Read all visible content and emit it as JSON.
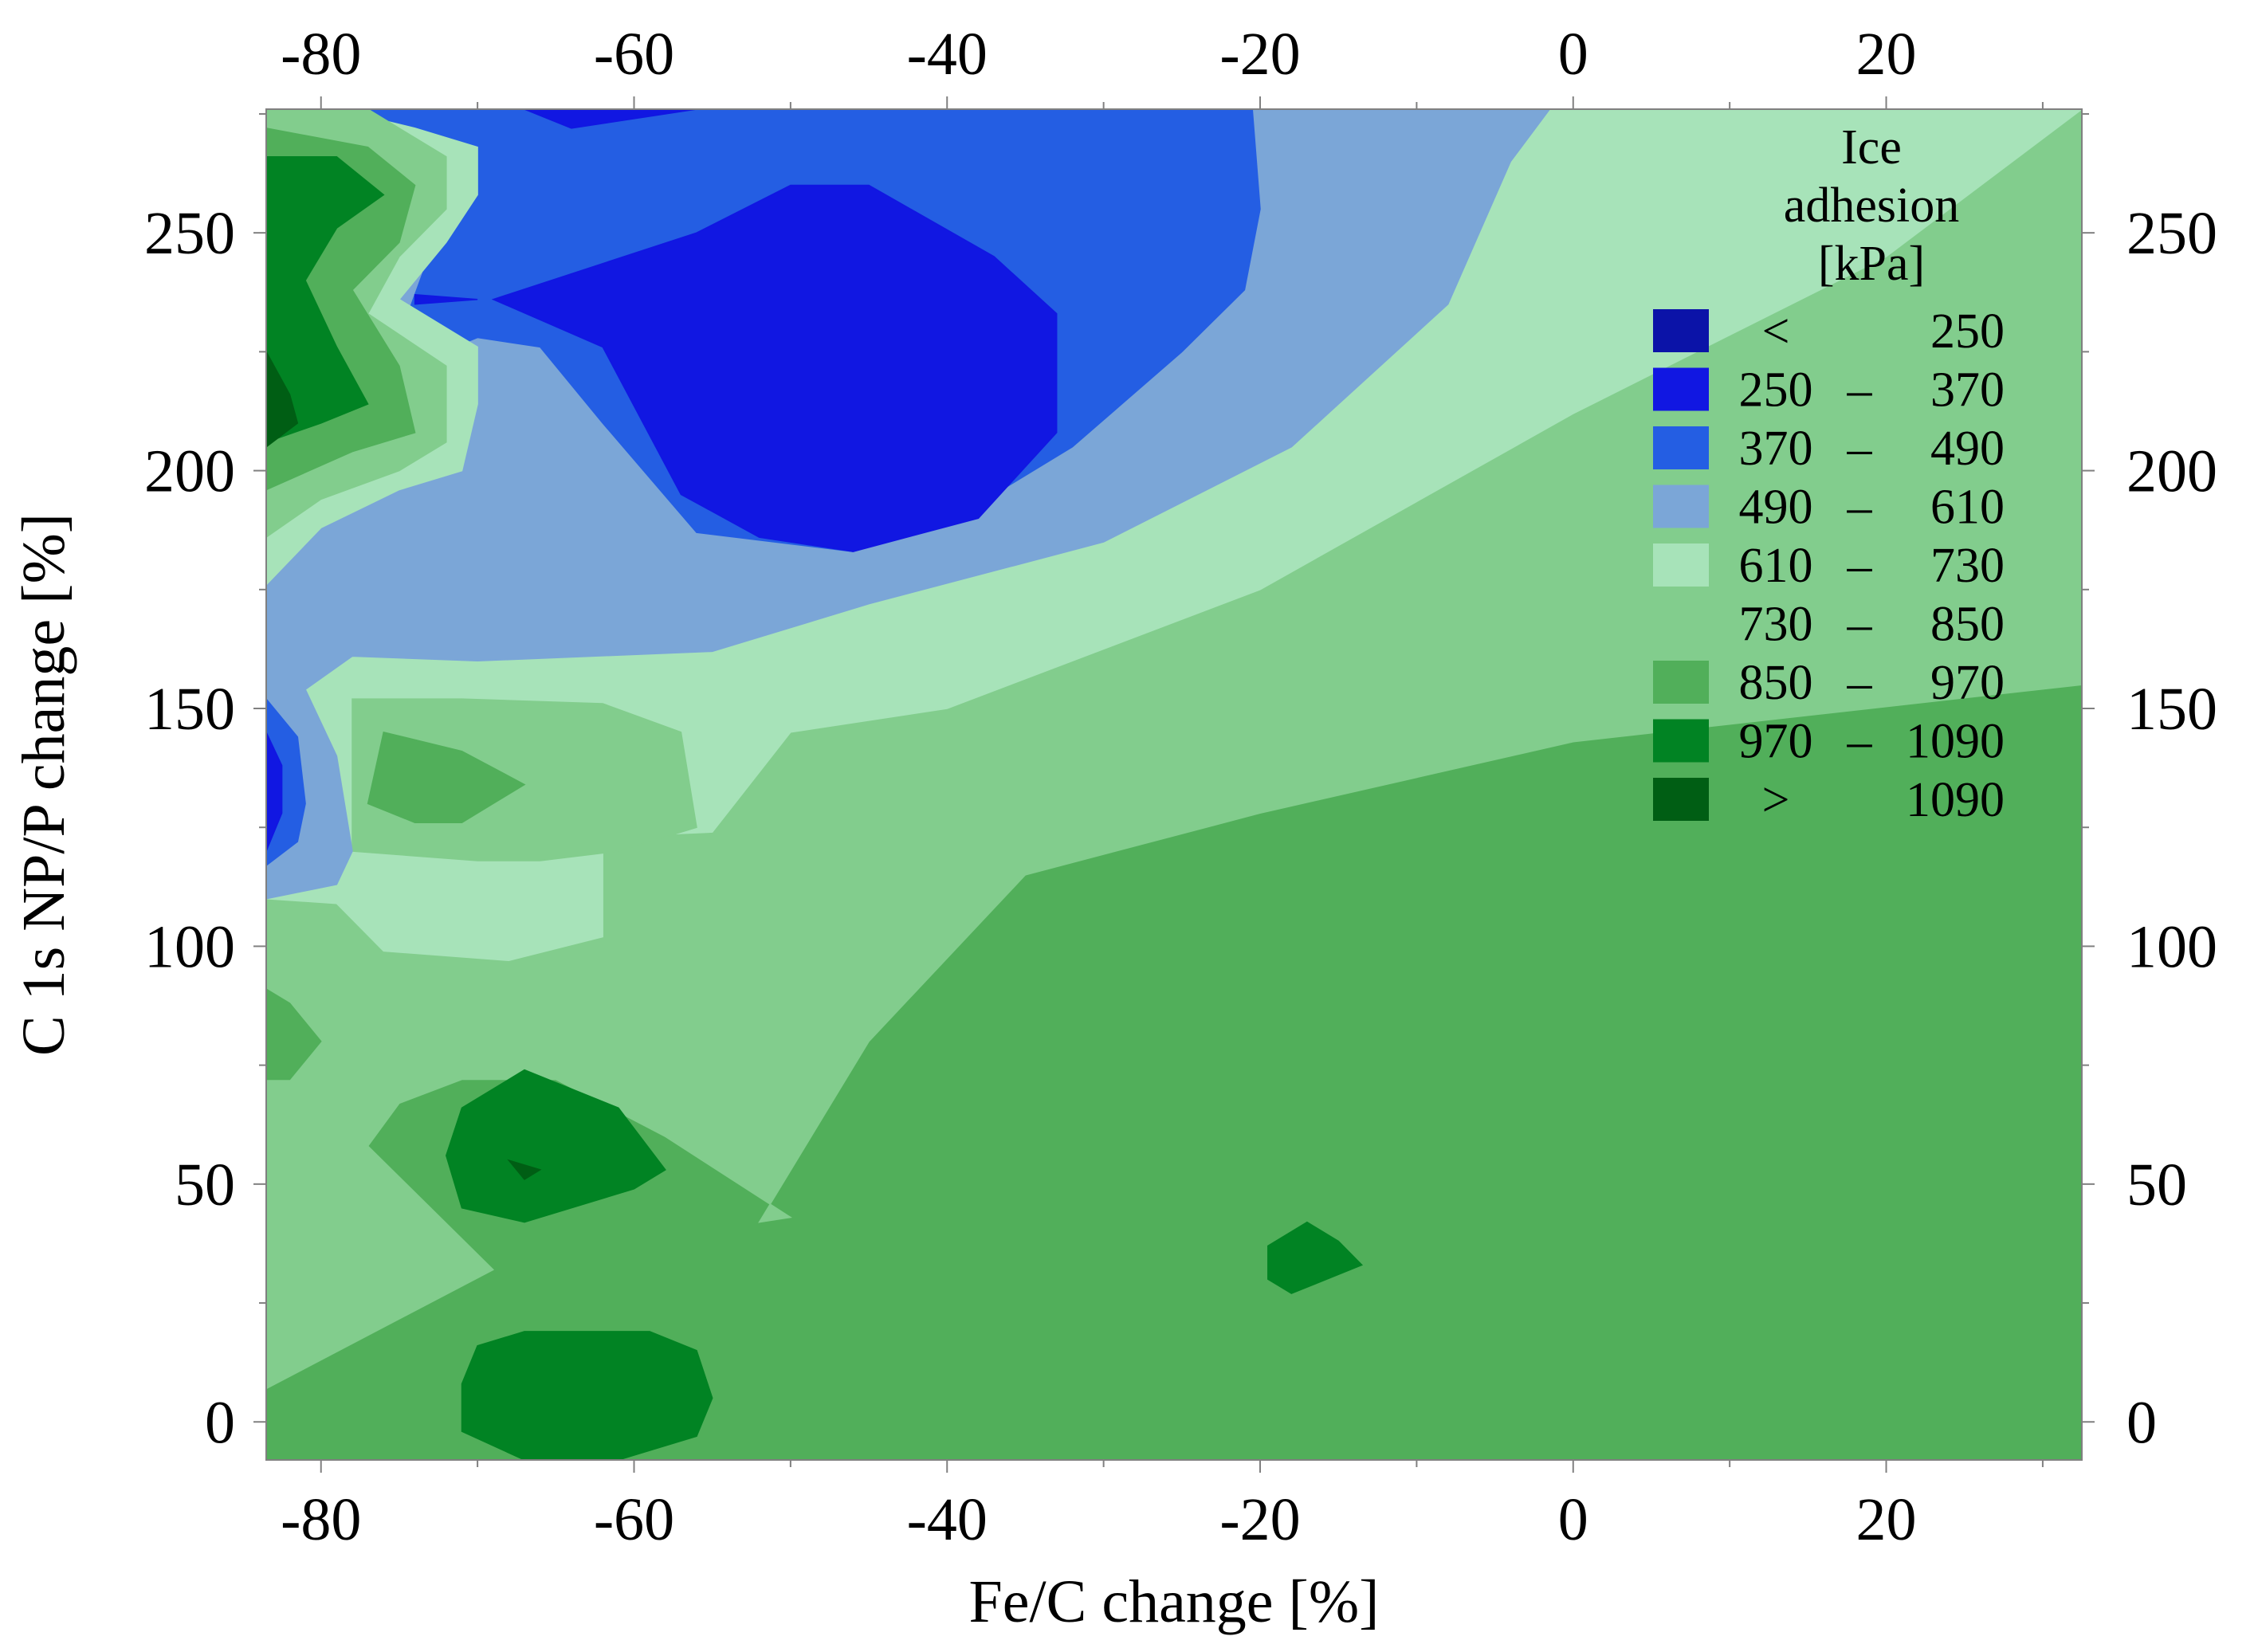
{
  "chart_data": {
    "type": "contour",
    "xlabel": "Fe/C change [%]",
    "ylabel": "C 1s NP/P change [%]",
    "xlim": [
      -83.5,
      32.5
    ],
    "ylim": [
      -8,
      276
    ],
    "x_ticks": [
      -80,
      -60,
      -40,
      -20,
      0,
      20
    ],
    "y_ticks": [
      0,
      50,
      100,
      150,
      200,
      250
    ],
    "x_tick_labels": [
      "-80",
      "-60",
      "-40",
      "-20",
      "0",
      "20"
    ],
    "y_tick_labels": [
      "0",
      "50",
      "100",
      "150",
      "200",
      "250"
    ],
    "x_minor_step": 10,
    "y_minor_step": 25,
    "ticks_on_all_sides": true,
    "grid": false,
    "legend": {
      "title_lines": [
        "Ice",
        "adhesion",
        "[kPa]"
      ],
      "placement": "top-right",
      "items": [
        {
          "low": "<",
          "dash": "",
          "high": "250",
          "color": "#0b13a8"
        },
        {
          "low": "250",
          "dash": "–",
          "high": "370",
          "color": "#1117e2"
        },
        {
          "low": "370",
          "dash": "–",
          "high": "490",
          "color": "#245ee3"
        },
        {
          "low": "490",
          "dash": "–",
          "high": "610",
          "color": "#7ba6d7"
        },
        {
          "low": "610",
          "dash": "–",
          "high": "730",
          "color": "#a7e3b9"
        },
        {
          "low": "730",
          "dash": "–",
          "high": "850",
          "color": "#82cd8d"
        },
        {
          "low": "850",
          "dash": "–",
          "high": "970",
          "color": "#51af5a"
        },
        {
          "low": "970",
          "dash": "–",
          "high": "1090",
          "color": "#018323"
        },
        {
          "low": ">",
          "dash": "",
          "high": "1090",
          "color": "#005e14"
        }
      ]
    },
    "regions": [
      {
        "level": "850-970",
        "color": "#51af5a",
        "points": [
          [
            -83.5,
            -8
          ],
          [
            32.5,
            -8
          ],
          [
            32.5,
            276
          ],
          [
            -83.5,
            276
          ]
        ]
      },
      {
        "level": "730-850",
        "color": "#82cd8d",
        "points": [
          [
            -83.5,
            276
          ],
          [
            32.5,
            276
          ],
          [
            32.5,
            155
          ],
          [
            0,
            143
          ],
          [
            -20,
            128
          ],
          [
            -35,
            115
          ],
          [
            -45,
            80
          ],
          [
            -52,
            42
          ],
          [
            -50,
            43
          ],
          [
            -58,
            60
          ],
          [
            -65,
            72
          ],
          [
            -71,
            72
          ],
          [
            -75,
            67
          ],
          [
            -77,
            58
          ],
          [
            -69,
            32
          ],
          [
            -83.5,
            7
          ]
        ]
      },
      {
        "level": "610-730",
        "color": "#a7e3b9",
        "points": [
          [
            -83.5,
            276
          ],
          [
            32.5,
            276
          ],
          [
            32.5,
            276
          ],
          [
            20,
            245
          ],
          [
            0,
            212
          ],
          [
            -20,
            175
          ],
          [
            -40,
            150
          ],
          [
            -50,
            145
          ],
          [
            -55,
            124
          ],
          [
            -62,
            123
          ],
          [
            -62,
            102
          ],
          [
            -68,
            97
          ],
          [
            -76,
            99
          ],
          [
            -79,
            109
          ],
          [
            -83.5,
            110
          ]
        ]
      },
      {
        "level": "730-850",
        "color": "#82cd8d",
        "points": [
          [
            -78,
            152
          ],
          [
            -71,
            152
          ],
          [
            -62,
            151
          ],
          [
            -57,
            145
          ],
          [
            -56,
            125
          ],
          [
            -61,
            120
          ],
          [
            -66,
            118
          ],
          [
            -70,
            118
          ],
          [
            -78,
            120
          ]
        ]
      },
      {
        "level": "850-970",
        "color": "#51af5a",
        "points": [
          [
            -76,
            145
          ],
          [
            -71,
            141
          ],
          [
            -67,
            134
          ],
          [
            -71,
            126
          ],
          [
            -74,
            126
          ],
          [
            -77,
            130
          ]
        ]
      },
      {
        "level": "850-970",
        "color": "#51af5a",
        "points": [
          [
            -83.5,
            91
          ],
          [
            -82,
            88
          ],
          [
            -80,
            80
          ],
          [
            -82,
            72
          ],
          [
            -83.5,
            72
          ]
        ]
      },
      {
        "level": "970-1090",
        "color": "#018323",
        "points": [
          [
            -67,
            74
          ],
          [
            -61,
            66
          ],
          [
            -58,
            53
          ],
          [
            -60,
            49
          ],
          [
            -67,
            42
          ],
          [
            -71,
            45
          ],
          [
            -72,
            56
          ],
          [
            -71,
            66
          ]
        ]
      },
      {
        "level": ">1090",
        "color": "#005e14",
        "points": [
          [
            -68,
            55
          ],
          [
            -67,
            51
          ],
          [
            -66,
            53
          ]
        ]
      },
      {
        "level": "970-1090",
        "color": "#018323",
        "points": [
          [
            -71,
            8
          ],
          [
            -70,
            16
          ],
          [
            -67,
            19
          ],
          [
            -59,
            19
          ],
          [
            -56,
            15
          ],
          [
            -55,
            5
          ],
          [
            -56,
            -3
          ],
          [
            -61,
            -8
          ],
          [
            -67,
            -8
          ],
          [
            -71,
            -2
          ]
        ]
      },
      {
        "level": "970-1090",
        "color": "#018323",
        "points": [
          [
            -17,
            42
          ],
          [
            -15,
            38
          ],
          [
            -13.5,
            33
          ],
          [
            -18,
            27
          ],
          [
            -19.5,
            30
          ],
          [
            -19.5,
            37
          ]
        ]
      },
      {
        "level": "490-610",
        "color": "#7ba6d7",
        "points": [
          [
            -83.5,
            276
          ],
          [
            -1.5,
            276
          ],
          [
            -4,
            265
          ],
          [
            -8,
            235
          ],
          [
            -18,
            205
          ],
          [
            -30,
            185
          ],
          [
            -45,
            172
          ],
          [
            -55,
            162
          ],
          [
            -70,
            160
          ],
          [
            -78,
            161
          ],
          [
            -81,
            154
          ],
          [
            -79,
            140
          ],
          [
            -78,
            120
          ],
          [
            -79,
            113
          ],
          [
            -83.5,
            110
          ]
        ]
      },
      {
        "level": "370-490",
        "color": "#245ee3",
        "points": [
          [
            -77,
            276
          ],
          [
            -20.5,
            276
          ],
          [
            -20,
            255
          ],
          [
            -21,
            238
          ],
          [
            -25,
            225
          ],
          [
            -32,
            205
          ],
          [
            -40,
            189
          ],
          [
            -46,
            183
          ],
          [
            -56,
            187
          ],
          [
            -62,
            210
          ],
          [
            -66,
            226
          ],
          [
            -70,
            228
          ],
          [
            -73,
            224
          ],
          [
            -75,
            228
          ],
          [
            -73,
            246
          ],
          [
            -72,
            258
          ],
          [
            -75,
            268
          ]
        ]
      },
      {
        "level": "250-370",
        "color": "#1117e2",
        "points": [
          [
            -69,
            236
          ],
          [
            -62,
            226
          ],
          [
            -57,
            195
          ],
          [
            -52,
            186
          ],
          [
            -46,
            183
          ],
          [
            -38,
            190
          ],
          [
            -33,
            208
          ],
          [
            -33,
            233
          ],
          [
            -37,
            245
          ],
          [
            -45,
            260
          ],
          [
            -50,
            260
          ],
          [
            -56,
            250
          ]
        ]
      },
      {
        "level": "250-370",
        "color": "#1117e2",
        "points": [
          [
            -74,
            237
          ],
          [
            -70,
            236
          ],
          [
            -74,
            235
          ]
        ]
      },
      {
        "level": "250-370",
        "color": "#1117e2",
        "points": [
          [
            -67,
            276
          ],
          [
            -56,
            276
          ],
          [
            -64,
            272
          ]
        ]
      },
      {
        "level": "370-490",
        "color": "#245ee3",
        "points": [
          [
            -83.5,
            152
          ],
          [
            -81.5,
            144
          ],
          [
            -81,
            130
          ],
          [
            -81.5,
            122
          ],
          [
            -83.5,
            117
          ]
        ]
      },
      {
        "level": "250-370",
        "color": "#1117e2",
        "points": [
          [
            -83.5,
            145
          ],
          [
            -82.5,
            138
          ],
          [
            -82.5,
            128
          ],
          [
            -83.5,
            120
          ]
        ]
      },
      {
        "level": "610-730",
        "color": "#a7e3b9",
        "points": [
          [
            -83.5,
            276
          ],
          [
            -79,
            276
          ],
          [
            -74,
            272
          ],
          [
            -70,
            268
          ],
          [
            -70,
            258
          ],
          [
            -72,
            248
          ],
          [
            -75,
            236
          ],
          [
            -70,
            226
          ],
          [
            -70,
            214
          ],
          [
            -71,
            200
          ],
          [
            -75,
            196
          ],
          [
            -80,
            188
          ],
          [
            -83.5,
            176
          ]
        ]
      },
      {
        "level": "730-850",
        "color": "#82cd8d",
        "points": [
          [
            -83.5,
            276
          ],
          [
            -77,
            276
          ],
          [
            -72,
            266
          ],
          [
            -72,
            255
          ],
          [
            -75,
            245
          ],
          [
            -77,
            233
          ],
          [
            -72,
            222
          ],
          [
            -72,
            206
          ],
          [
            -75,
            200
          ],
          [
            -80,
            194
          ],
          [
            -83.5,
            186
          ]
        ]
      },
      {
        "level": "850-970",
        "color": "#51af5a",
        "points": [
          [
            -83.5,
            272
          ],
          [
            -77,
            268
          ],
          [
            -74,
            260
          ],
          [
            -75,
            248
          ],
          [
            -78,
            238
          ],
          [
            -75,
            222
          ],
          [
            -74,
            208
          ],
          [
            -78,
            204
          ],
          [
            -83.5,
            196
          ]
        ]
      },
      {
        "level": "970-1090",
        "color": "#018323",
        "points": [
          [
            -83.5,
            266
          ],
          [
            -79,
            266
          ],
          [
            -76,
            258
          ],
          [
            -79,
            251
          ],
          [
            -81,
            240
          ],
          [
            -79,
            226
          ],
          [
            -77,
            214
          ],
          [
            -80,
            210
          ],
          [
            -83.5,
            206
          ]
        ]
      },
      {
        "level": ">1090",
        "color": "#005e14",
        "points": [
          [
            -83.5,
            225
          ],
          [
            -82,
            216
          ],
          [
            -81.5,
            210
          ],
          [
            -83.5,
            205
          ]
        ]
      }
    ]
  }
}
